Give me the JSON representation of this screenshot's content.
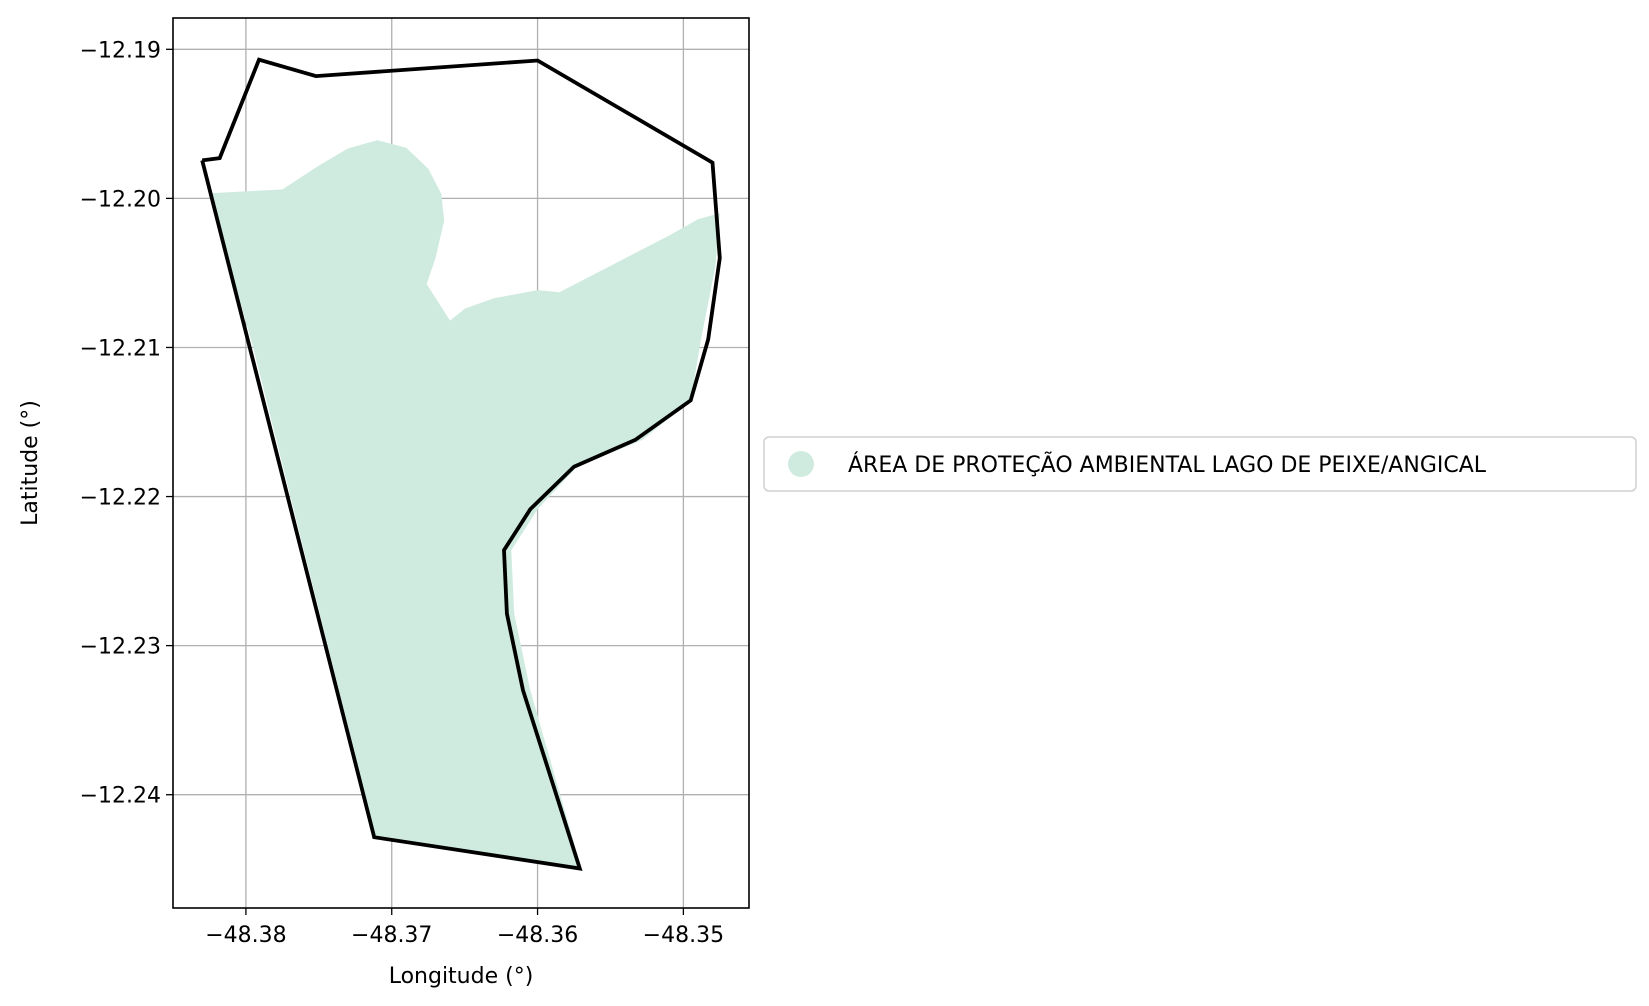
{
  "chart_data": {
    "type": "map",
    "xlabel": "Longitude (°)",
    "ylabel": "Latitude (°)",
    "xlim": [
      -48.385,
      -48.3455
    ],
    "ylim": [
      -12.2476,
      -12.1879
    ],
    "grid": true,
    "x_ticks": [
      {
        "value": -48.38,
        "label": "−48.38"
      },
      {
        "value": -48.37,
        "label": "−48.37"
      },
      {
        "value": -48.36,
        "label": "−48.36"
      },
      {
        "value": -48.35,
        "label": "−48.35"
      }
    ],
    "y_ticks": [
      {
        "value": -12.19,
        "label": "−12.19"
      },
      {
        "value": -12.2,
        "label": "−12.20"
      },
      {
        "value": -12.21,
        "label": "−12.21"
      },
      {
        "value": -12.22,
        "label": "−12.22"
      },
      {
        "value": -12.23,
        "label": "−12.23"
      },
      {
        "value": -12.24,
        "label": "−12.24"
      }
    ],
    "legend": {
      "placement": "center-right-outside",
      "entries": [
        {
          "label": "ÁREA DE PROTEÇÃO AMBIENTAL LAGO DE PEIXE/ANGICAL",
          "color": "#cfebdf",
          "marker": "circle"
        }
      ]
    },
    "layers": [
      {
        "name": "ÁREA DE PROTEÇÃO AMBIENTAL LAGO DE PEIXE/ANGICAL",
        "kind": "filled-polygon",
        "color": "#cfebdf",
        "coords": [
          [
            -48.3825,
            -12.19965
          ],
          [
            -48.3775,
            -12.1994
          ],
          [
            -48.375,
            -12.1978
          ],
          [
            -48.373,
            -12.19665
          ],
          [
            -48.371,
            -12.1961
          ],
          [
            -48.369,
            -12.1966
          ],
          [
            -48.3675,
            -12.198
          ],
          [
            -48.3666,
            -12.1997
          ],
          [
            -48.3664,
            -12.2015
          ],
          [
            -48.367,
            -12.204
          ],
          [
            -48.3676,
            -12.20575
          ],
          [
            -48.366,
            -12.2082
          ],
          [
            -48.365,
            -12.2074
          ],
          [
            -48.363,
            -12.2067
          ],
          [
            -48.36,
            -12.20615
          ],
          [
            -48.3585,
            -12.2063
          ],
          [
            -48.351,
            -12.2025
          ],
          [
            -48.349,
            -12.2014
          ],
          [
            -48.3475,
            -12.201
          ],
          [
            -48.3478,
            -12.2045
          ],
          [
            -48.3488,
            -12.2095
          ],
          [
            -48.3495,
            -12.21355
          ],
          [
            -48.3528,
            -12.2162
          ],
          [
            -48.3573,
            -12.218
          ],
          [
            -48.36,
            -12.22085
          ],
          [
            -48.3618,
            -12.2236
          ],
          [
            -48.3616,
            -12.22785
          ],
          [
            -48.3605,
            -12.233
          ],
          [
            -48.357,
            -12.24495
          ],
          [
            -48.3711,
            -12.24285
          ],
          [
            -48.3795,
            -12.21
          ]
        ]
      },
      {
        "name": "boundary",
        "kind": "outline",
        "color": "#000000",
        "coords": [
          [
            -48.383,
            -12.19745
          ],
          [
            -48.3818,
            -12.1973
          ],
          [
            -48.3791,
            -12.1907
          ],
          [
            -48.3752,
            -12.1918
          ],
          [
            -48.36,
            -12.19075
          ],
          [
            -48.348,
            -12.1976
          ],
          [
            -48.3475,
            -12.204
          ],
          [
            -48.3483,
            -12.20945
          ],
          [
            -48.3495,
            -12.21355
          ],
          [
            -48.3533,
            -12.2162
          ],
          [
            -48.3575,
            -12.218
          ],
          [
            -48.3605,
            -12.22085
          ],
          [
            -48.3623,
            -12.2236
          ],
          [
            -48.3621,
            -12.22785
          ],
          [
            -48.361,
            -12.233
          ],
          [
            -48.3571,
            -12.24495
          ],
          [
            -48.3712,
            -12.24285
          ],
          [
            -48.383,
            -12.19745
          ]
        ]
      }
    ]
  }
}
